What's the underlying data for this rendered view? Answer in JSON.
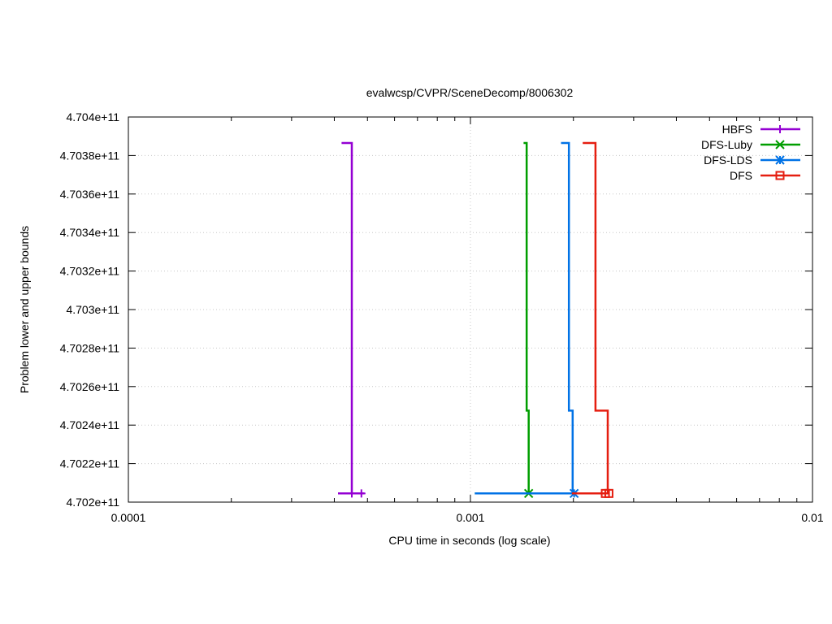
{
  "chart_data": {
    "type": "line",
    "title": "evalwcsp/CVPR/SceneDecomp/8006302",
    "xlabel": "CPU time in seconds (log scale)",
    "ylabel": "Problem lower and upper bounds",
    "x_scale": "log",
    "xlim": [
      0.0001,
      0.01
    ],
    "ylim": [
      470200000000,
      470400000000
    ],
    "x_ticks": [
      {
        "value": 0.0001,
        "label": "0.0001"
      },
      {
        "value": 0.001,
        "label": "0.001"
      },
      {
        "value": 0.01,
        "label": "0.01"
      }
    ],
    "y_ticks": [
      {
        "value": 470200000000,
        "label": "4.702e+11"
      },
      {
        "value": 470220000000,
        "label": "4.7022e+11"
      },
      {
        "value": 470240000000,
        "label": "4.7024e+11"
      },
      {
        "value": 470260000000,
        "label": "4.7026e+11"
      },
      {
        "value": 470280000000,
        "label": "4.7028e+11"
      },
      {
        "value": 470300000000,
        "label": "4.703e+11"
      },
      {
        "value": 470320000000,
        "label": "4.7032e+11"
      },
      {
        "value": 470340000000,
        "label": "4.7034e+11"
      },
      {
        "value": 470360000000,
        "label": "4.7036e+11"
      },
      {
        "value": 470380000000,
        "label": "4.7038e+11"
      },
      {
        "value": 470400000000,
        "label": "4.704e+11"
      }
    ],
    "grid": true,
    "legend_position": "top-right",
    "series": [
      {
        "name": "HBFS",
        "color": "#9400d3",
        "marker": "plus",
        "upper": [
          [
            0.00042,
            470386500000
          ],
          [
            0.00045,
            470386500000
          ],
          [
            0.00045,
            470204500000
          ]
        ],
        "lower": [
          [
            0.00041,
            470204500000
          ],
          [
            0.00049,
            470204500000
          ]
        ],
        "marker_points": [
          [
            0.00045,
            470204500000
          ],
          [
            0.00048,
            470204500000
          ]
        ]
      },
      {
        "name": "DFS-Luby",
        "color": "#009e00",
        "marker": "x",
        "upper": [
          [
            0.00143,
            470386500000
          ],
          [
            0.00146,
            470386500000
          ],
          [
            0.00146,
            470247500000
          ],
          [
            0.00148,
            470247500000
          ],
          [
            0.00148,
            470204500000
          ]
        ],
        "lower": [
          [
            0.00103,
            470204500000
          ],
          [
            0.00148,
            470204500000
          ]
        ],
        "marker_points": [
          [
            0.00148,
            470204500000
          ]
        ]
      },
      {
        "name": "DFS-LDS",
        "color": "#0072e6",
        "marker": "star",
        "upper": [
          [
            0.00184,
            470386500000
          ],
          [
            0.00194,
            470386500000
          ],
          [
            0.00194,
            470247500000
          ],
          [
            0.00199,
            470247500000
          ],
          [
            0.00199,
            470204500000
          ]
        ],
        "lower": [
          [
            0.00103,
            470204500000
          ],
          [
            0.00201,
            470204500000
          ]
        ],
        "marker_points": [
          [
            0.00201,
            470204500000
          ]
        ]
      },
      {
        "name": "DFS",
        "color": "#e51e10",
        "marker": "square",
        "upper": [
          [
            0.00213,
            470386500000
          ],
          [
            0.00232,
            470386500000
          ],
          [
            0.00232,
            470247500000
          ],
          [
            0.00252,
            470247500000
          ],
          [
            0.00252,
            470204500000
          ]
        ],
        "lower": [
          [
            0.00198,
            470204500000
          ],
          [
            0.00254,
            470204500000
          ]
        ],
        "marker_points": [
          [
            0.00248,
            470204500000
          ],
          [
            0.00254,
            470204500000
          ]
        ]
      }
    ]
  }
}
